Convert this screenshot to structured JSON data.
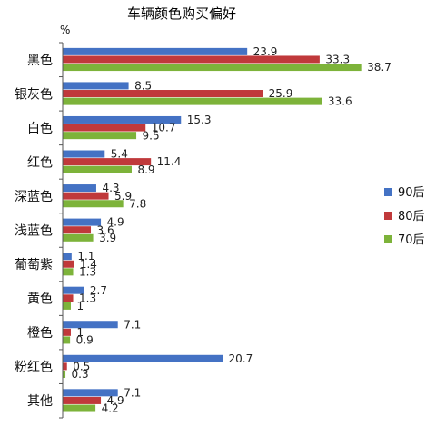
{
  "chart_data": {
    "type": "bar",
    "orientation": "horizontal",
    "title": "车辆颜色购买偏好",
    "ylabel": "%",
    "categories": [
      "黑色",
      "银灰色",
      "白色",
      "红色",
      "深蓝色",
      "浅蓝色",
      "葡萄紫",
      "黄色",
      "橙色",
      "粉红色",
      "其他"
    ],
    "series": [
      {
        "name": "90后",
        "color": "#4472C4",
        "values": [
          23.9,
          8.5,
          15.3,
          5.4,
          4.3,
          4.9,
          1.1,
          2.7,
          7.1,
          20.7,
          7.1
        ]
      },
      {
        "name": "80后",
        "color": "#C0393B",
        "values": [
          33.3,
          25.9,
          10.7,
          11.4,
          5.9,
          3.6,
          1.4,
          1.3,
          1,
          0.5,
          4.9
        ]
      },
      {
        "name": "70后",
        "color": "#7DB33A",
        "values": [
          38.7,
          33.6,
          9.5,
          8.9,
          7.8,
          3.9,
          1.3,
          1,
          0.9,
          0.3,
          4.2
        ]
      }
    ],
    "legend_position": "right",
    "grid": false
  }
}
